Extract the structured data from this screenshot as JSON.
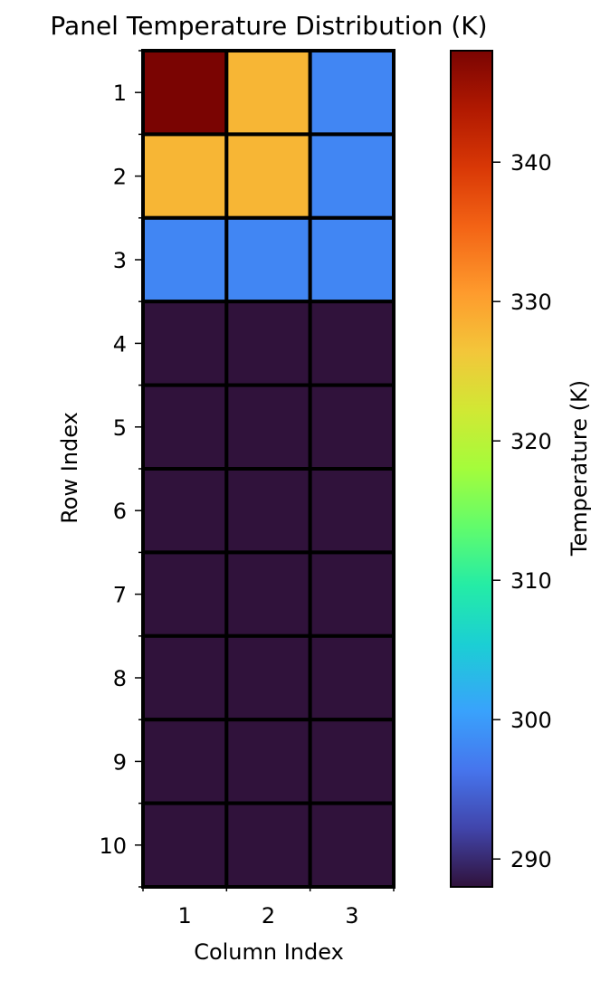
{
  "chart_data": {
    "type": "heatmap",
    "title": "Panel Temperature Distribution (K)",
    "xlabel": "Column Index",
    "ylabel": "Row Index",
    "x_categories": [
      "1",
      "2",
      "3"
    ],
    "y_categories": [
      "1",
      "2",
      "3",
      "4",
      "5",
      "6",
      "7",
      "8",
      "9",
      "10"
    ],
    "values": [
      [
        348,
        328,
        298
      ],
      [
        328,
        328,
        298
      ],
      [
        298,
        298,
        298
      ],
      [
        288,
        288,
        288
      ],
      [
        288,
        288,
        288
      ],
      [
        288,
        288,
        288
      ],
      [
        288,
        288,
        288
      ],
      [
        288,
        288,
        288
      ],
      [
        288,
        288,
        288
      ],
      [
        288,
        288,
        288
      ]
    ],
    "colorbar": {
      "label": "Temperature (K)",
      "colormap": "turbo",
      "range": [
        288,
        348
      ],
      "ticks": [
        290,
        300,
        310,
        320,
        330,
        340
      ]
    },
    "cell_edge_color": "#000000",
    "grid": false
  }
}
